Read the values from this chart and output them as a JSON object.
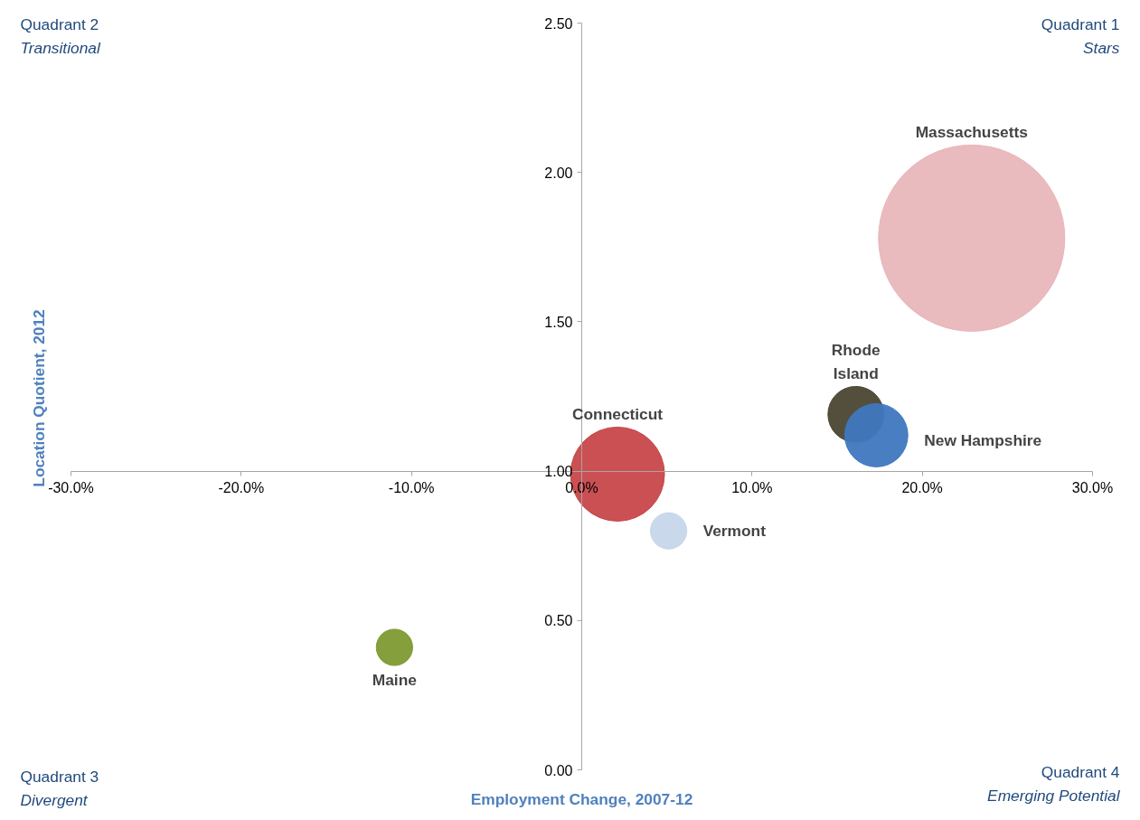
{
  "chart_data": {
    "type": "bubble",
    "xlabel": "Employment Change, 2007-12",
    "ylabel": "Location Quotient, 2012",
    "xlim": [
      -30,
      30
    ],
    "ylim": [
      0,
      2.5
    ],
    "xticks": [
      {
        "value": -30,
        "label": "-30.0%"
      },
      {
        "value": -20,
        "label": "-20.0%"
      },
      {
        "value": -10,
        "label": "-10.0%"
      },
      {
        "value": 0,
        "label": "0.0%"
      },
      {
        "value": 10,
        "label": "10.0%"
      },
      {
        "value": 20,
        "label": "20.0%"
      },
      {
        "value": 30,
        "label": "30.0%"
      }
    ],
    "yticks": [
      {
        "value": 0,
        "label": "0.00"
      },
      {
        "value": 0.5,
        "label": "0.50"
      },
      {
        "value": 1,
        "label": "1.00"
      },
      {
        "value": 1.5,
        "label": "1.50"
      },
      {
        "value": 2,
        "label": "2.00"
      },
      {
        "value": 2.5,
        "label": "2.50"
      }
    ],
    "grid": false,
    "legend": false,
    "series": [
      {
        "name": "Massachusetts",
        "color": "#e8b6ba",
        "x": [
          22.9
        ],
        "values": [
          1.78
        ],
        "sizes": [
          1
        ]
      },
      {
        "name": "Connecticut",
        "color": "#c8474a",
        "x": [
          2.1
        ],
        "values": [
          0.99
        ],
        "sizes": [
          0.255
        ]
      },
      {
        "name": "Vermont",
        "color": "#c6d6ea",
        "x": [
          5.1
        ],
        "values": [
          0.8
        ],
        "sizes": [
          0.038
        ]
      },
      {
        "name": "Rhode Island",
        "color": "#4b4631",
        "x": [
          16.1
        ],
        "values": [
          1.19
        ],
        "sizes": [
          0.09
        ]
      },
      {
        "name": "New Hampshire",
        "color": "#3f78bf",
        "x": [
          17.3
        ],
        "values": [
          1.12
        ],
        "sizes": [
          0.115
        ]
      },
      {
        "name": "Maine",
        "color": "#7d9a30",
        "x": [
          -11.0
        ],
        "values": [
          0.41
        ],
        "sizes": [
          0.038
        ]
      }
    ],
    "annotations": [
      "Quadrant 2",
      "Transitional",
      "Quadrant 1",
      "Stars",
      "Quadrant 3",
      "Divergent",
      "Quadrant 4",
      "Emerging Potential"
    ]
  }
}
